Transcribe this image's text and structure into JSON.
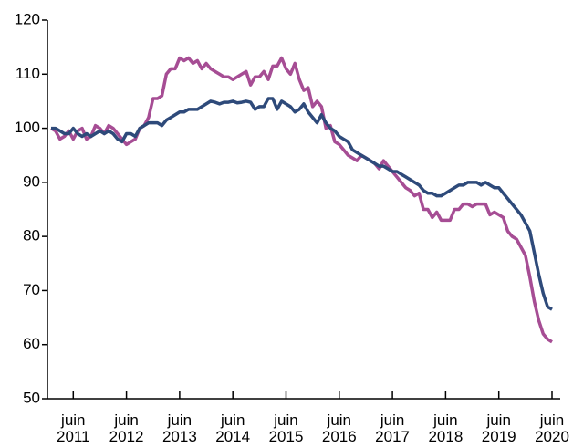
{
  "chart_data": {
    "type": "line",
    "categories": [
      null,
      null,
      null,
      null,
      null,
      "juin 2011",
      null,
      null,
      null,
      null,
      null,
      null,
      null,
      null,
      null,
      null,
      null,
      "juin 2012",
      null,
      null,
      null,
      null,
      null,
      null,
      null,
      null,
      null,
      null,
      null,
      "juin 2013",
      null,
      null,
      null,
      null,
      null,
      null,
      null,
      null,
      null,
      null,
      null,
      "juin 2014",
      null,
      null,
      null,
      null,
      null,
      null,
      null,
      null,
      null,
      null,
      null,
      "juin 2015",
      null,
      null,
      null,
      null,
      null,
      null,
      null,
      null,
      null,
      null,
      null,
      "juin 2016",
      null,
      null,
      null,
      null,
      null,
      null,
      null,
      null,
      null,
      null,
      null,
      "juin 2017",
      null,
      null,
      null,
      null,
      null,
      null,
      null,
      null,
      null,
      null,
      null,
      "juin 2018",
      null,
      null,
      null,
      null,
      null,
      null,
      null,
      null,
      null,
      null,
      null,
      "juin 2019",
      null,
      null,
      null,
      null,
      null,
      null,
      null,
      null,
      null,
      null,
      null,
      "juin 2020"
    ],
    "series": [
      {
        "color": "#a64d94",
        "values": [
          100,
          99.5,
          98,
          98.5,
          99.5,
          98,
          99.5,
          100,
          98,
          98.5,
          100.5,
          100,
          99,
          100.5,
          100,
          99,
          98,
          97,
          97.5,
          98,
          100,
          100.5,
          102,
          105.5,
          105.5,
          106,
          110,
          111,
          111,
          113,
          112.5,
          113,
          112,
          112.5,
          111,
          112,
          111,
          110.5,
          110,
          109.5,
          109.5,
          109,
          109.5,
          110,
          110.5,
          108,
          109.5,
          109.5,
          110.5,
          109,
          111.5,
          111.5,
          113,
          111,
          110,
          112,
          109,
          107,
          107.5,
          104,
          105,
          104,
          100,
          100.5,
          97.5,
          97,
          96,
          95,
          94.5,
          94,
          95,
          94.5,
          94,
          93.5,
          92.5,
          94,
          93,
          92,
          91,
          90,
          89,
          88.5,
          87.5,
          88,
          85,
          85,
          83.5,
          84.5,
          83,
          83,
          83,
          85,
          85,
          86,
          86,
          85.5,
          86,
          86,
          86,
          84,
          84.5,
          84,
          83.5,
          81,
          80,
          79.5,
          78,
          76.5,
          72.5,
          68,
          64.5,
          62,
          61,
          60.5
        ]
      },
      {
        "color": "#2e4a7a",
        "values": [
          100,
          100,
          99.5,
          99,
          99,
          100,
          99,
          98.5,
          99,
          98.5,
          99,
          99.5,
          99,
          99.5,
          99,
          98,
          97.5,
          99,
          99,
          98.5,
          100,
          100.5,
          101,
          101,
          101,
          100.5,
          101.5,
          102,
          102.5,
          103,
          103,
          103.5,
          103.5,
          103.5,
          104,
          104.5,
          105,
          104.8,
          104.5,
          104.8,
          104.8,
          105,
          104.7,
          104.8,
          105,
          104.8,
          103.5,
          104,
          104,
          105.5,
          105.5,
          103.5,
          105,
          104.5,
          104,
          103,
          103.5,
          104.5,
          103,
          102,
          101,
          102.5,
          101,
          100,
          99.5,
          98.5,
          98,
          97.5,
          96,
          95.5,
          95,
          94.5,
          94,
          93.5,
          93,
          93,
          92.5,
          92,
          92,
          91.5,
          91,
          90.5,
          90,
          89.5,
          88.5,
          88,
          88,
          87.5,
          87.5,
          88,
          88.5,
          89,
          89.5,
          89.5,
          90,
          90,
          90,
          89.5,
          90,
          89.5,
          89,
          89,
          88,
          87,
          86,
          85,
          84,
          82.5,
          81,
          77,
          73,
          69.5,
          67,
          66.5
        ]
      }
    ],
    "ylim": [
      50,
      120
    ],
    "yticks": [
      50,
      60,
      70,
      80,
      90,
      100,
      110,
      120
    ]
  }
}
